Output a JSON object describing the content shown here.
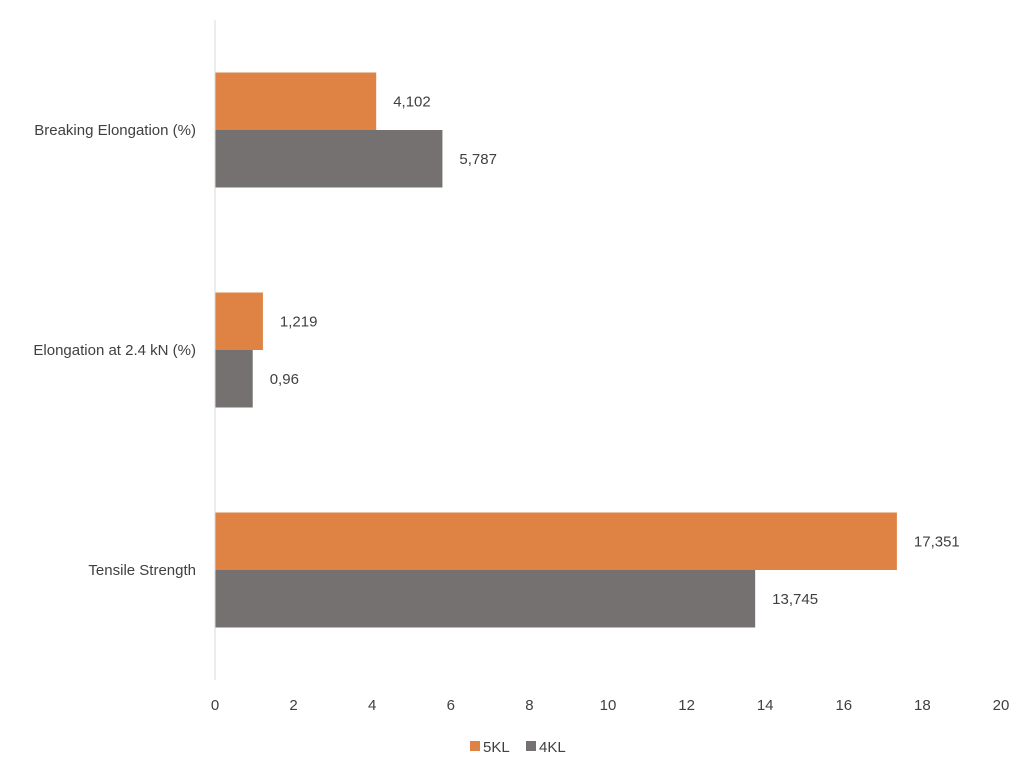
{
  "chart_data": {
    "type": "bar",
    "orientation": "horizontal",
    "title": "",
    "xlabel": "",
    "ylabel": "",
    "xlim": [
      0,
      20
    ],
    "x_ticks": [
      "0",
      "2",
      "4",
      "6",
      "8",
      "10",
      "12",
      "14",
      "16",
      "18",
      "20"
    ],
    "grid": false,
    "categories": [
      "Breaking Elongation (%)",
      "Elongation at 2.4 kN (%)",
      "Tensile Strength"
    ],
    "series": [
      {
        "name": "5KL",
        "color": "#DE8344",
        "values": [
          4.102,
          1.219,
          17.351
        ],
        "labels": [
          "4,102",
          "1,219",
          "17,351"
        ]
      },
      {
        "name": "4KL",
        "color": "#767171",
        "values": [
          5.787,
          0.96,
          13.745
        ],
        "labels": [
          "5,787",
          "0,96",
          "13,745"
        ]
      }
    ],
    "legend_position": "bottom"
  }
}
